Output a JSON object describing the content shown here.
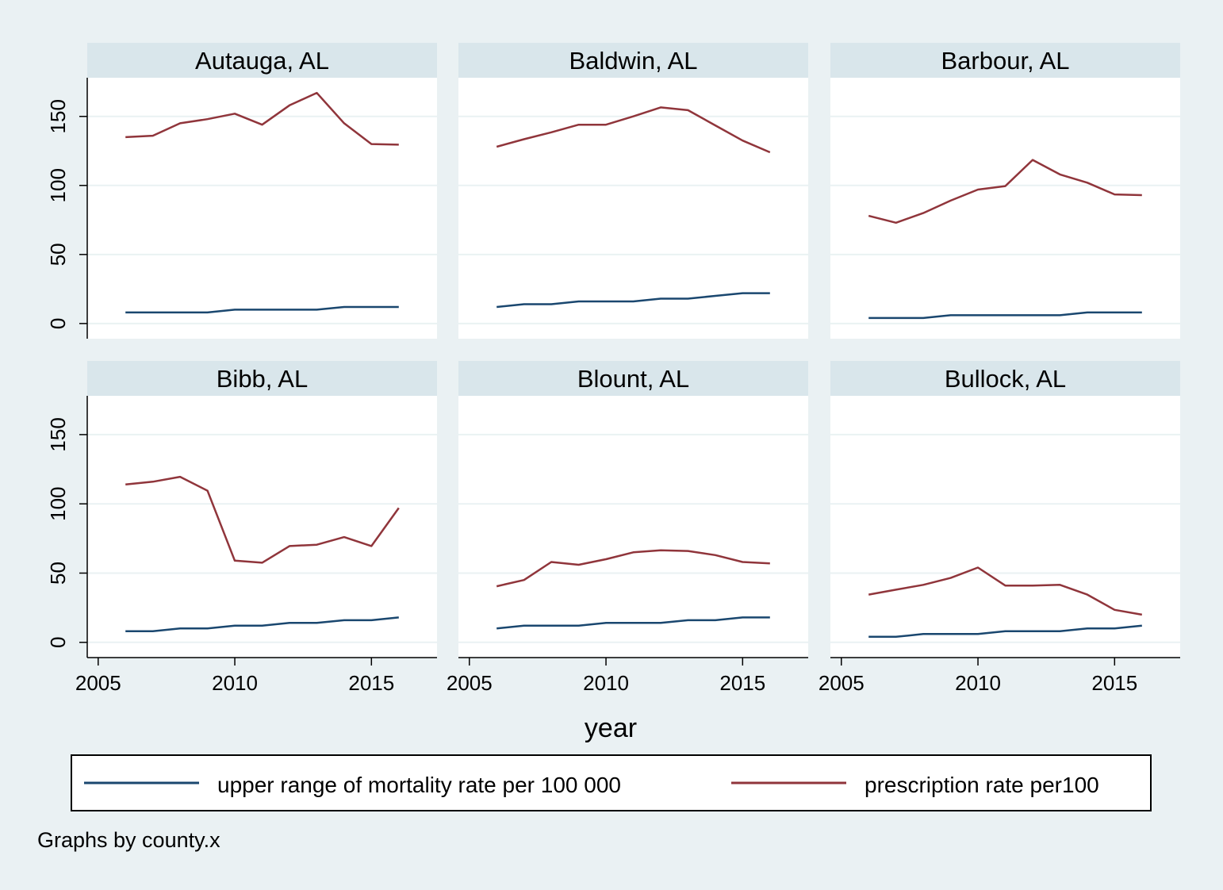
{
  "chart_data": {
    "type": "line",
    "x": [
      2006,
      2007,
      2008,
      2009,
      2010,
      2011,
      2012,
      2013,
      2014,
      2015,
      2016
    ],
    "xlabel": "year",
    "ylabel": "",
    "xlim": [
      2004.6,
      2017.4
    ],
    "ylim": [
      -11,
      178
    ],
    "xticks": [
      "2005",
      "2010",
      "2015"
    ],
    "yticks": [
      "0",
      "50",
      "100",
      "150"
    ],
    "grid": true,
    "legend_position": "bottom",
    "note": "Graphs by county.x",
    "series_meta": [
      {
        "name": "upper range of mortality rate per 100 000",
        "color": "#1a476f"
      },
      {
        "name": "prescription rate per100",
        "color": "#90353b"
      }
    ],
    "panels": [
      {
        "title": "Autauga, AL",
        "mortality": [
          8,
          8,
          8,
          8,
          10,
          10,
          10,
          10,
          12,
          12,
          12
        ],
        "prescription": [
          135,
          136,
          145,
          148,
          152,
          144,
          158,
          167,
          145,
          130,
          129.5
        ]
      },
      {
        "title": "Baldwin, AL",
        "mortality": [
          12,
          14,
          14,
          16,
          16,
          16,
          18,
          18,
          20,
          22,
          22
        ],
        "prescription": [
          128,
          133.5,
          138.5,
          144,
          144,
          150,
          156.5,
          154.5,
          143.5,
          132.5,
          124
        ]
      },
      {
        "title": "Barbour, AL",
        "mortality": [
          4,
          4,
          4,
          6,
          6,
          6,
          6,
          6,
          8,
          8,
          8
        ],
        "prescription": [
          78,
          73,
          80,
          89,
          97,
          99.5,
          118.5,
          108,
          102,
          93.5,
          93
        ]
      },
      {
        "title": "Bibb, AL",
        "mortality": [
          8,
          8,
          10,
          10,
          12,
          12,
          14,
          14,
          16,
          16,
          18
        ],
        "prescription": [
          114,
          116,
          119.5,
          109.5,
          59,
          57.5,
          69.5,
          70.5,
          76,
          69.5,
          97
        ]
      },
      {
        "title": "Blount, AL",
        "mortality": [
          10,
          12,
          12,
          12,
          14,
          14,
          14,
          16,
          16,
          18,
          18
        ],
        "prescription": [
          40.5,
          45,
          58,
          56,
          60,
          65,
          66.5,
          66,
          63,
          58,
          57
        ]
      },
      {
        "title": "Bullock, AL",
        "mortality": [
          4,
          4,
          6,
          6,
          6,
          8,
          8,
          8,
          10,
          10,
          12
        ],
        "prescription": [
          34.5,
          38,
          41.5,
          46.5,
          54,
          41,
          41,
          41.5,
          34.5,
          23.5,
          20
        ]
      }
    ]
  }
}
